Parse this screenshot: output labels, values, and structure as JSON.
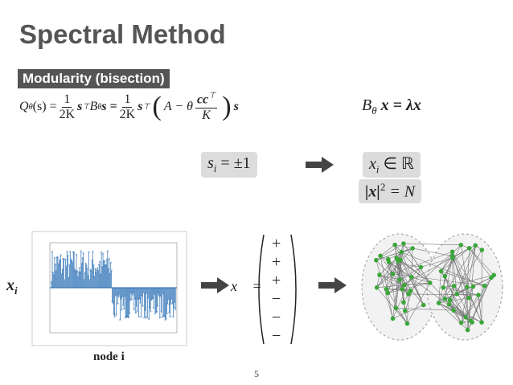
{
  "title": "Spectral Method",
  "label": "Modularity (bisection)",
  "modularity": {
    "q": "Q",
    "q_sub": "θ",
    "arg": "(s) =",
    "frac1_num": "1",
    "frac1_den": "2K",
    "s1": "s",
    "s1_sup": "⊤",
    "b": "B",
    "b_sub": "θ",
    "s2": "s =",
    "frac2_num": "1",
    "frac2_den": "2K",
    "s3": "s",
    "s3_sup": "⊤",
    "paren_open": "(",
    "a": "A − θ",
    "frac3_num": "cc",
    "frac3_num_sup": "⊤",
    "frac3_den": "K",
    "paren_close": ")",
    "s4": "s"
  },
  "eigen": {
    "b": "B",
    "b_sub": "θ",
    "rest": "x = λx"
  },
  "discrete": {
    "s": "s",
    "s_sub": "i",
    "rest": "= ±1"
  },
  "relaxed": {
    "x": "x",
    "x_sub": "i",
    "rest": "∈ ℝ",
    "norm": "|x|",
    "norm_sup": "2",
    "norm_rest": "= N"
  },
  "plot_y_label": {
    "x": "x",
    "x_sub": "i"
  },
  "plot_x_label": "node i",
  "vector": {
    "lhs": "x⃗ =",
    "entries": [
      "+",
      "+",
      "+",
      "−",
      "−",
      "−"
    ]
  },
  "page_number": "5"
}
